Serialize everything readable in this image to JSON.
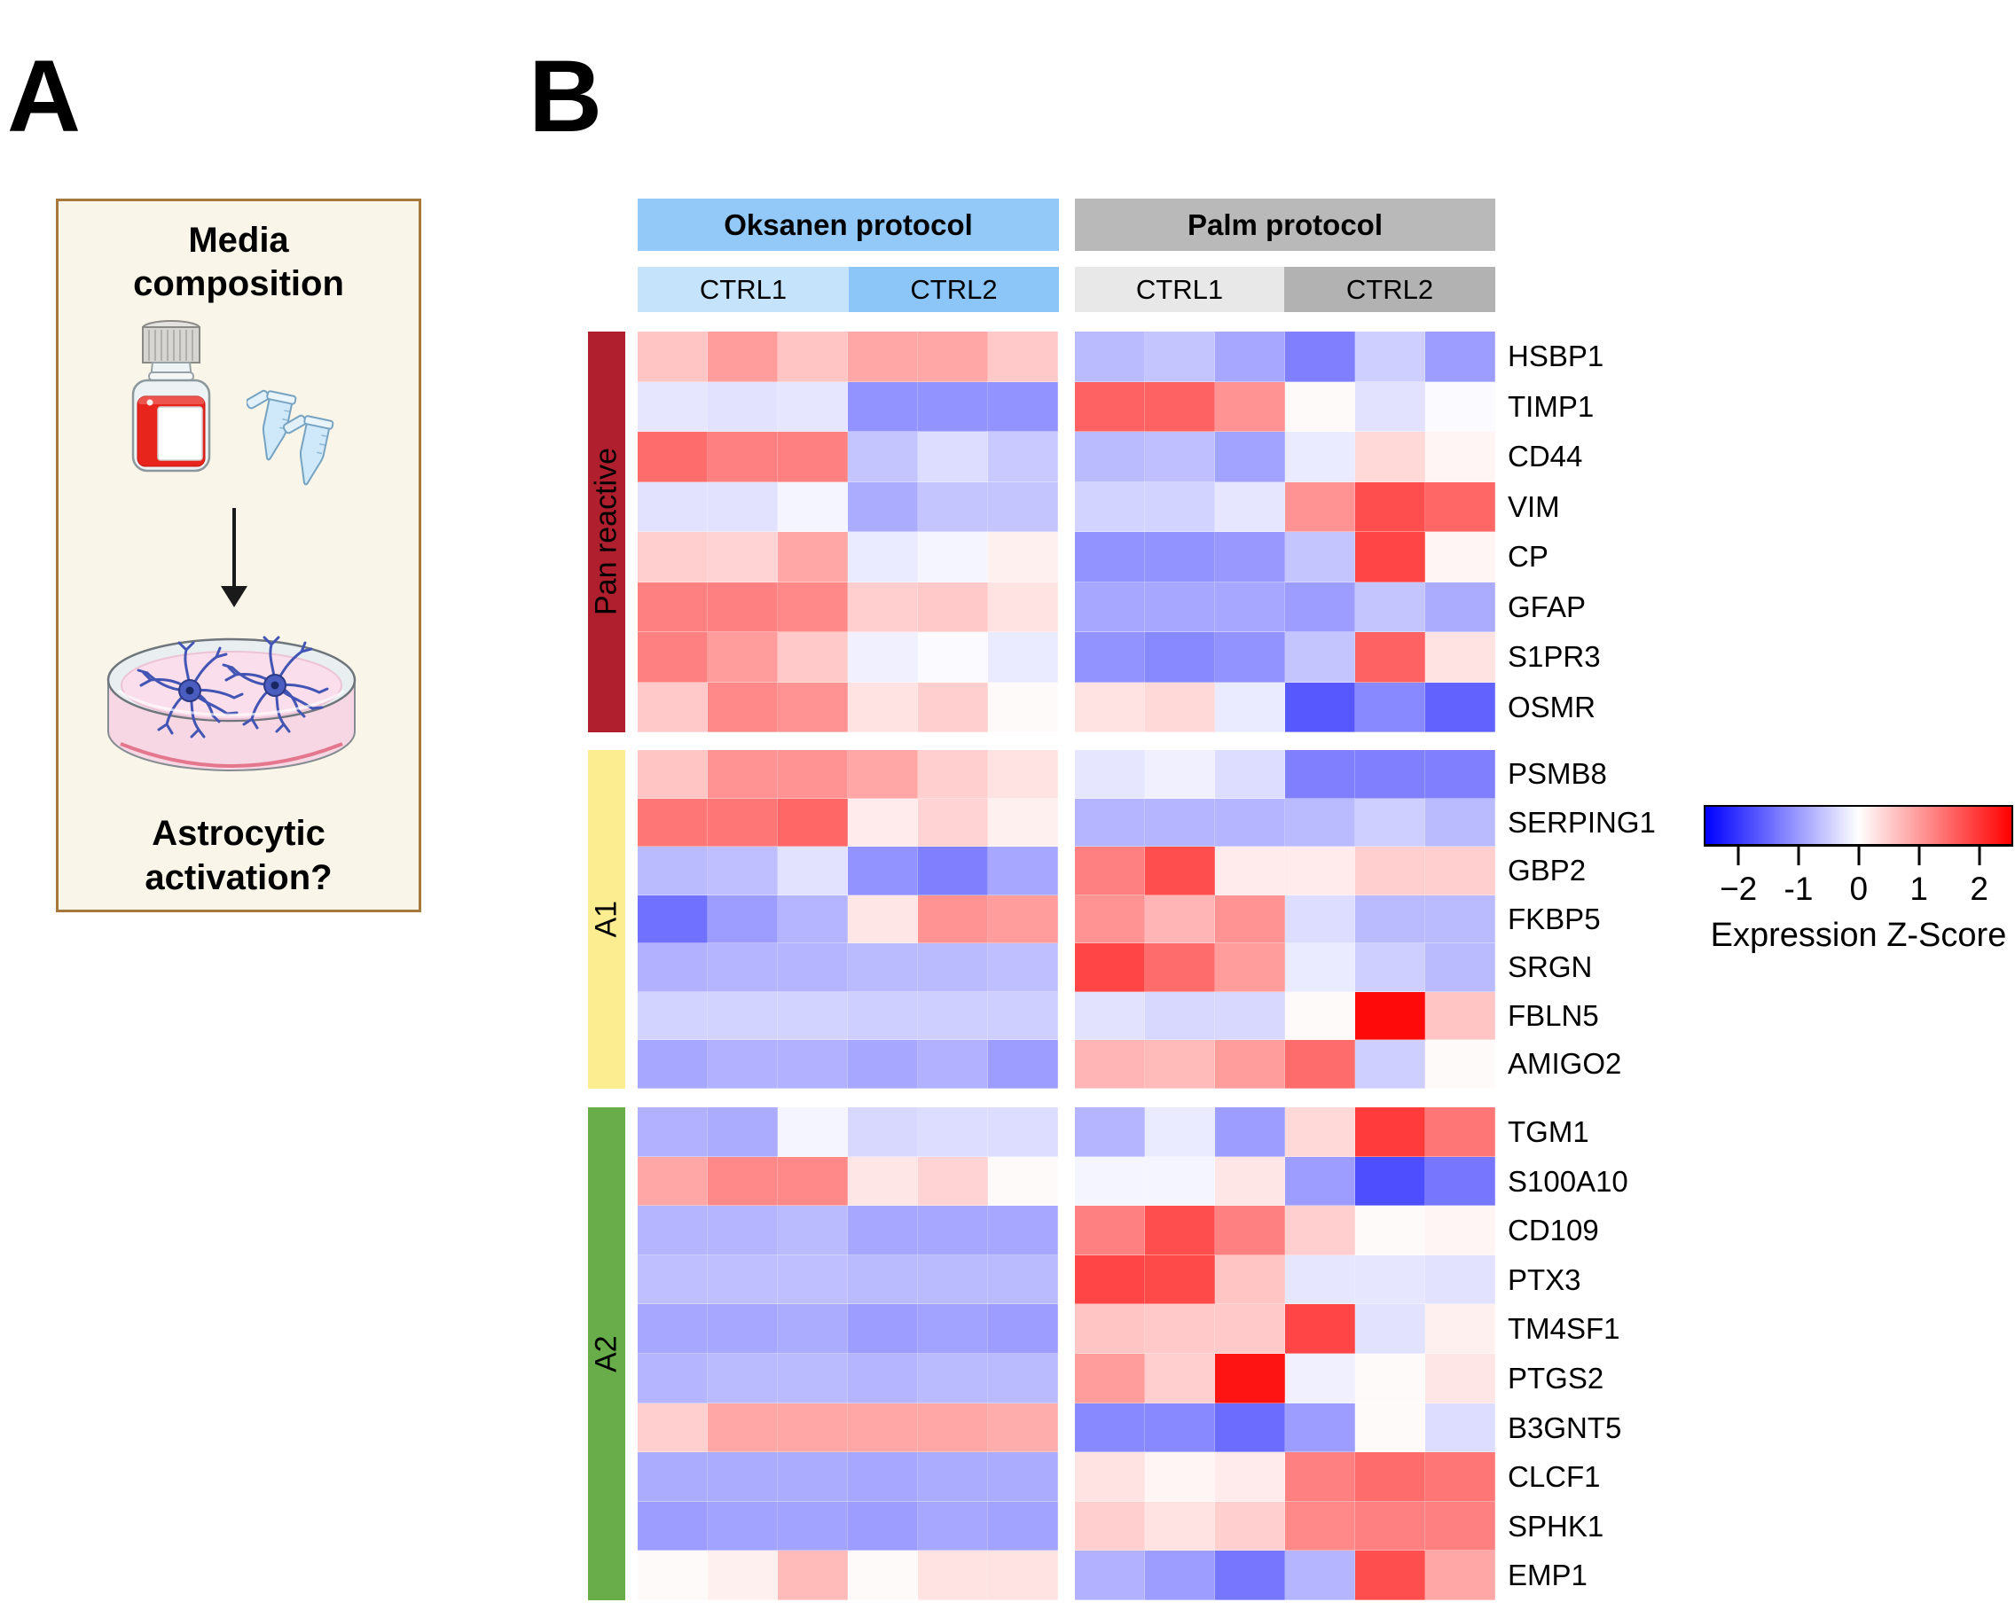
{
  "panel_a": {
    "label": "A",
    "title": "Media composition",
    "question": "Astrocytic activation?"
  },
  "panel_b": {
    "label": "B"
  },
  "legend": {
    "ticks": [
      "−2",
      "-1",
      "0",
      "1",
      "2"
    ],
    "title": "Expression Z-Score"
  },
  "colors": {
    "box_border": "#a5793b",
    "box_bg": "#faf5e9",
    "media_red": "#e8251d",
    "tube_blue": "#cfe9fa",
    "dish_pink": "#fbdeeb",
    "astro_blue": "#4355b4",
    "legend_blue": "#0000ff",
    "legend_red": "#ff0000"
  },
  "chart_data": {
    "type": "heatmap",
    "value_name": "Expression Z-Score",
    "colormap": {
      "min": -2.6,
      "mid": 0,
      "max": 2.6,
      "min_color": "#0000ff",
      "mid_color": "#ffffff",
      "max_color": "#ff0000"
    },
    "column_groups": [
      {
        "protocol": "Oksanen protocol",
        "band_color": "#92c9f8",
        "cell_lines": [
          {
            "label": "CTRL1",
            "color": "#c6e3fc",
            "replicates": 3
          },
          {
            "label": "CTRL2",
            "color": "#8cc6f8",
            "replicates": 3
          }
        ]
      },
      {
        "protocol": "Palm protocol",
        "band_color": "#b9b9b9",
        "cell_lines": [
          {
            "label": "CTRL1",
            "color": "#e8e8e8",
            "replicates": 3
          },
          {
            "label": "CTRL2",
            "color": "#b2b2b2",
            "replicates": 3
          }
        ]
      }
    ],
    "row_groups": [
      {
        "name": "Pan reactive",
        "color": "#b01f2e",
        "genes": [
          {
            "gene": "HSBP1",
            "values": [
              0.6,
              1.0,
              0.6,
              0.9,
              0.9,
              0.55,
              -0.7,
              -0.6,
              -0.9,
              -1.3,
              -0.5,
              -1.0
            ]
          },
          {
            "gene": "TIMP1",
            "values": [
              -0.25,
              -0.3,
              -0.25,
              -1.1,
              -1.1,
              -1.1,
              1.6,
              1.6,
              1.1,
              0.05,
              -0.3,
              -0.05
            ]
          },
          {
            "gene": "CD44",
            "values": [
              1.5,
              1.3,
              1.3,
              -0.6,
              -0.35,
              -0.55,
              -0.7,
              -0.65,
              -0.95,
              -0.2,
              0.4,
              0.1
            ]
          },
          {
            "gene": "VIM",
            "values": [
              -0.3,
              -0.3,
              -0.1,
              -0.85,
              -0.6,
              -0.6,
              -0.45,
              -0.45,
              -0.25,
              1.1,
              1.8,
              1.55
            ]
          },
          {
            "gene": "CP",
            "values": [
              0.5,
              0.45,
              0.9,
              -0.2,
              -0.1,
              0.15,
              -1.1,
              -1.1,
              -1.05,
              -0.6,
              1.9,
              0.1
            ]
          },
          {
            "gene": "GFAP",
            "values": [
              1.3,
              1.3,
              1.2,
              0.5,
              0.55,
              0.3,
              -0.9,
              -0.9,
              -0.9,
              -1.0,
              -0.6,
              -0.85
            ]
          },
          {
            "gene": "S1PR3",
            "values": [
              1.3,
              1.0,
              0.55,
              -0.15,
              -0.05,
              -0.2,
              -1.1,
              -1.2,
              -1.1,
              -0.6,
              1.6,
              0.3
            ]
          },
          {
            "gene": "OSMR",
            "values": [
              0.55,
              1.2,
              1.1,
              0.3,
              0.5,
              0.05,
              0.3,
              0.4,
              -0.2,
              -1.7,
              -1.2,
              -1.6
            ]
          }
        ]
      },
      {
        "name": "A1",
        "color": "#fcee90",
        "genes": [
          {
            "gene": "PSMB8",
            "values": [
              0.6,
              1.1,
              1.1,
              0.9,
              0.5,
              0.3,
              -0.25,
              -0.15,
              -0.35,
              -1.3,
              -1.3,
              -1.3
            ]
          },
          {
            "gene": "SERPING1",
            "values": [
              1.4,
              1.4,
              1.55,
              0.2,
              0.45,
              0.15,
              -0.75,
              -0.75,
              -0.75,
              -0.7,
              -0.5,
              -0.7
            ]
          },
          {
            "gene": "GBP2",
            "values": [
              -0.7,
              -0.65,
              -0.3,
              -1.1,
              -1.3,
              -0.9,
              1.3,
              1.8,
              0.2,
              0.2,
              0.5,
              0.5
            ]
          },
          {
            "gene": "FKBP5",
            "values": [
              -1.45,
              -1.0,
              -0.75,
              0.25,
              1.1,
              1.0,
              1.1,
              0.75,
              1.1,
              -0.35,
              -0.7,
              -0.7
            ]
          },
          {
            "gene": "SRGN",
            "values": [
              -0.8,
              -0.75,
              -0.75,
              -0.7,
              -0.7,
              -0.65,
              1.9,
              1.5,
              1.0,
              -0.2,
              -0.5,
              -0.7
            ]
          },
          {
            "gene": "FBLN5",
            "values": [
              -0.45,
              -0.45,
              -0.45,
              -0.5,
              -0.5,
              -0.5,
              -0.3,
              -0.4,
              -0.4,
              0.05,
              2.5,
              0.6
            ]
          },
          {
            "gene": "AMIGO2",
            "values": [
              -0.9,
              -0.8,
              -0.8,
              -0.9,
              -0.8,
              -1.0,
              0.75,
              0.7,
              1.0,
              1.5,
              -0.5,
              0.05
            ]
          }
        ]
      },
      {
        "name": "A2",
        "color": "#68ad4a",
        "genes": [
          {
            "gene": "TGM1",
            "values": [
              -0.8,
              -0.85,
              -0.1,
              -0.4,
              -0.35,
              -0.35,
              -0.75,
              -0.2,
              -1.0,
              0.4,
              2.0,
              1.4
            ]
          },
          {
            "gene": "S100A10",
            "values": [
              0.9,
              1.2,
              1.2,
              0.25,
              0.45,
              0.05,
              -0.1,
              -0.1,
              0.25,
              -1.0,
              -1.8,
              -1.4
            ]
          },
          {
            "gene": "CD109",
            "values": [
              -0.75,
              -0.75,
              -0.7,
              -0.9,
              -0.9,
              -0.9,
              1.3,
              1.8,
              1.3,
              0.5,
              0.05,
              0.1
            ]
          },
          {
            "gene": "PTX3",
            "values": [
              -0.65,
              -0.65,
              -0.65,
              -0.7,
              -0.7,
              -0.7,
              1.9,
              1.85,
              0.6,
              -0.25,
              -0.25,
              -0.3
            ]
          },
          {
            "gene": "TM4SF1",
            "values": [
              -0.9,
              -0.9,
              -0.85,
              -1.0,
              -0.95,
              -1.0,
              0.6,
              0.55,
              0.55,
              1.9,
              -0.3,
              0.15
            ]
          },
          {
            "gene": "PTGS2",
            "values": [
              -0.75,
              -0.7,
              -0.7,
              -0.75,
              -0.7,
              -0.7,
              1.0,
              0.5,
              2.4,
              -0.15,
              0.05,
              0.25
            ]
          },
          {
            "gene": "B3GNT5",
            "values": [
              0.5,
              0.9,
              0.9,
              0.9,
              0.9,
              0.85,
              -1.2,
              -1.2,
              -1.5,
              -1.0,
              0.05,
              -0.35
            ]
          },
          {
            "gene": "CLCF1",
            "values": [
              -0.85,
              -0.85,
              -0.85,
              -0.9,
              -0.85,
              -0.85,
              0.3,
              0.1,
              0.2,
              1.3,
              1.5,
              1.4
            ]
          },
          {
            "gene": "SPHK1",
            "values": [
              -1.0,
              -0.95,
              -0.95,
              -1.0,
              -0.9,
              -0.95,
              0.5,
              0.3,
              0.5,
              1.2,
              1.3,
              1.3
            ]
          },
          {
            "gene": "EMP1",
            "values": [
              0.05,
              0.15,
              0.7,
              0.05,
              0.3,
              0.3,
              -0.8,
              -1.0,
              -1.4,
              -0.75,
              1.8,
              0.9
            ]
          }
        ]
      }
    ]
  }
}
